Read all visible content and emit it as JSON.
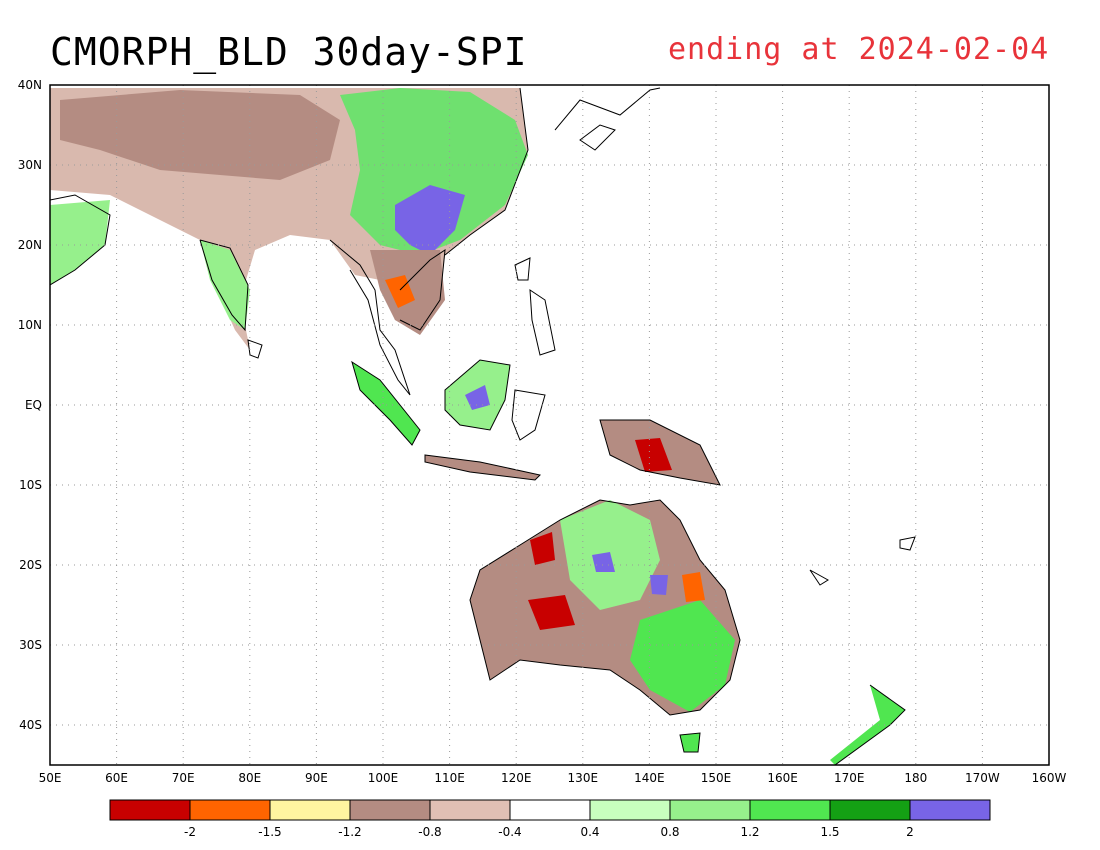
{
  "title": "CMORPH_BLD 30day-SPI",
  "subtitle": "ending at 2024-02-04",
  "map": {
    "lon_range": [
      50,
      200
    ],
    "lat_range": [
      -45,
      40
    ],
    "lon_ticks": [
      {
        "value": 50,
        "label": "50E"
      },
      {
        "value": 60,
        "label": "60E"
      },
      {
        "value": 70,
        "label": "70E"
      },
      {
        "value": 80,
        "label": "80E"
      },
      {
        "value": 90,
        "label": "90E"
      },
      {
        "value": 100,
        "label": "100E"
      },
      {
        "value": 110,
        "label": "110E"
      },
      {
        "value": 120,
        "label": "120E"
      },
      {
        "value": 130,
        "label": "130E"
      },
      {
        "value": 140,
        "label": "140E"
      },
      {
        "value": 150,
        "label": "150E"
      },
      {
        "value": 160,
        "label": "160E"
      },
      {
        "value": 170,
        "label": "170E"
      },
      {
        "value": 180,
        "label": "180"
      },
      {
        "value": 190,
        "label": "170W"
      },
      {
        "value": 200,
        "label": "160W"
      }
    ],
    "lat_ticks": [
      {
        "value": 40,
        "label": "40N"
      },
      {
        "value": 30,
        "label": "30N"
      },
      {
        "value": 20,
        "label": "20N"
      },
      {
        "value": 10,
        "label": "10N"
      },
      {
        "value": 0,
        "label": "EQ"
      },
      {
        "value": -10,
        "label": "10S"
      },
      {
        "value": -20,
        "label": "20S"
      },
      {
        "value": -30,
        "label": "30S"
      },
      {
        "value": -40,
        "label": "40S"
      }
    ],
    "grid": true
  },
  "colorbar": {
    "colors": [
      "#c80000",
      "#ff6400",
      "#fff5a0",
      "#b48c82",
      "#e1bfb4",
      "#ffffff",
      "#c8ffbe",
      "#96f08c",
      "#50e650",
      "#14a014",
      "#7864e6"
    ],
    "labels": [
      "-2",
      "-1.5",
      "-1.2",
      "-0.8",
      "-0.4",
      "0.4",
      "0.8",
      "1.2",
      "1.5",
      "2"
    ]
  }
}
